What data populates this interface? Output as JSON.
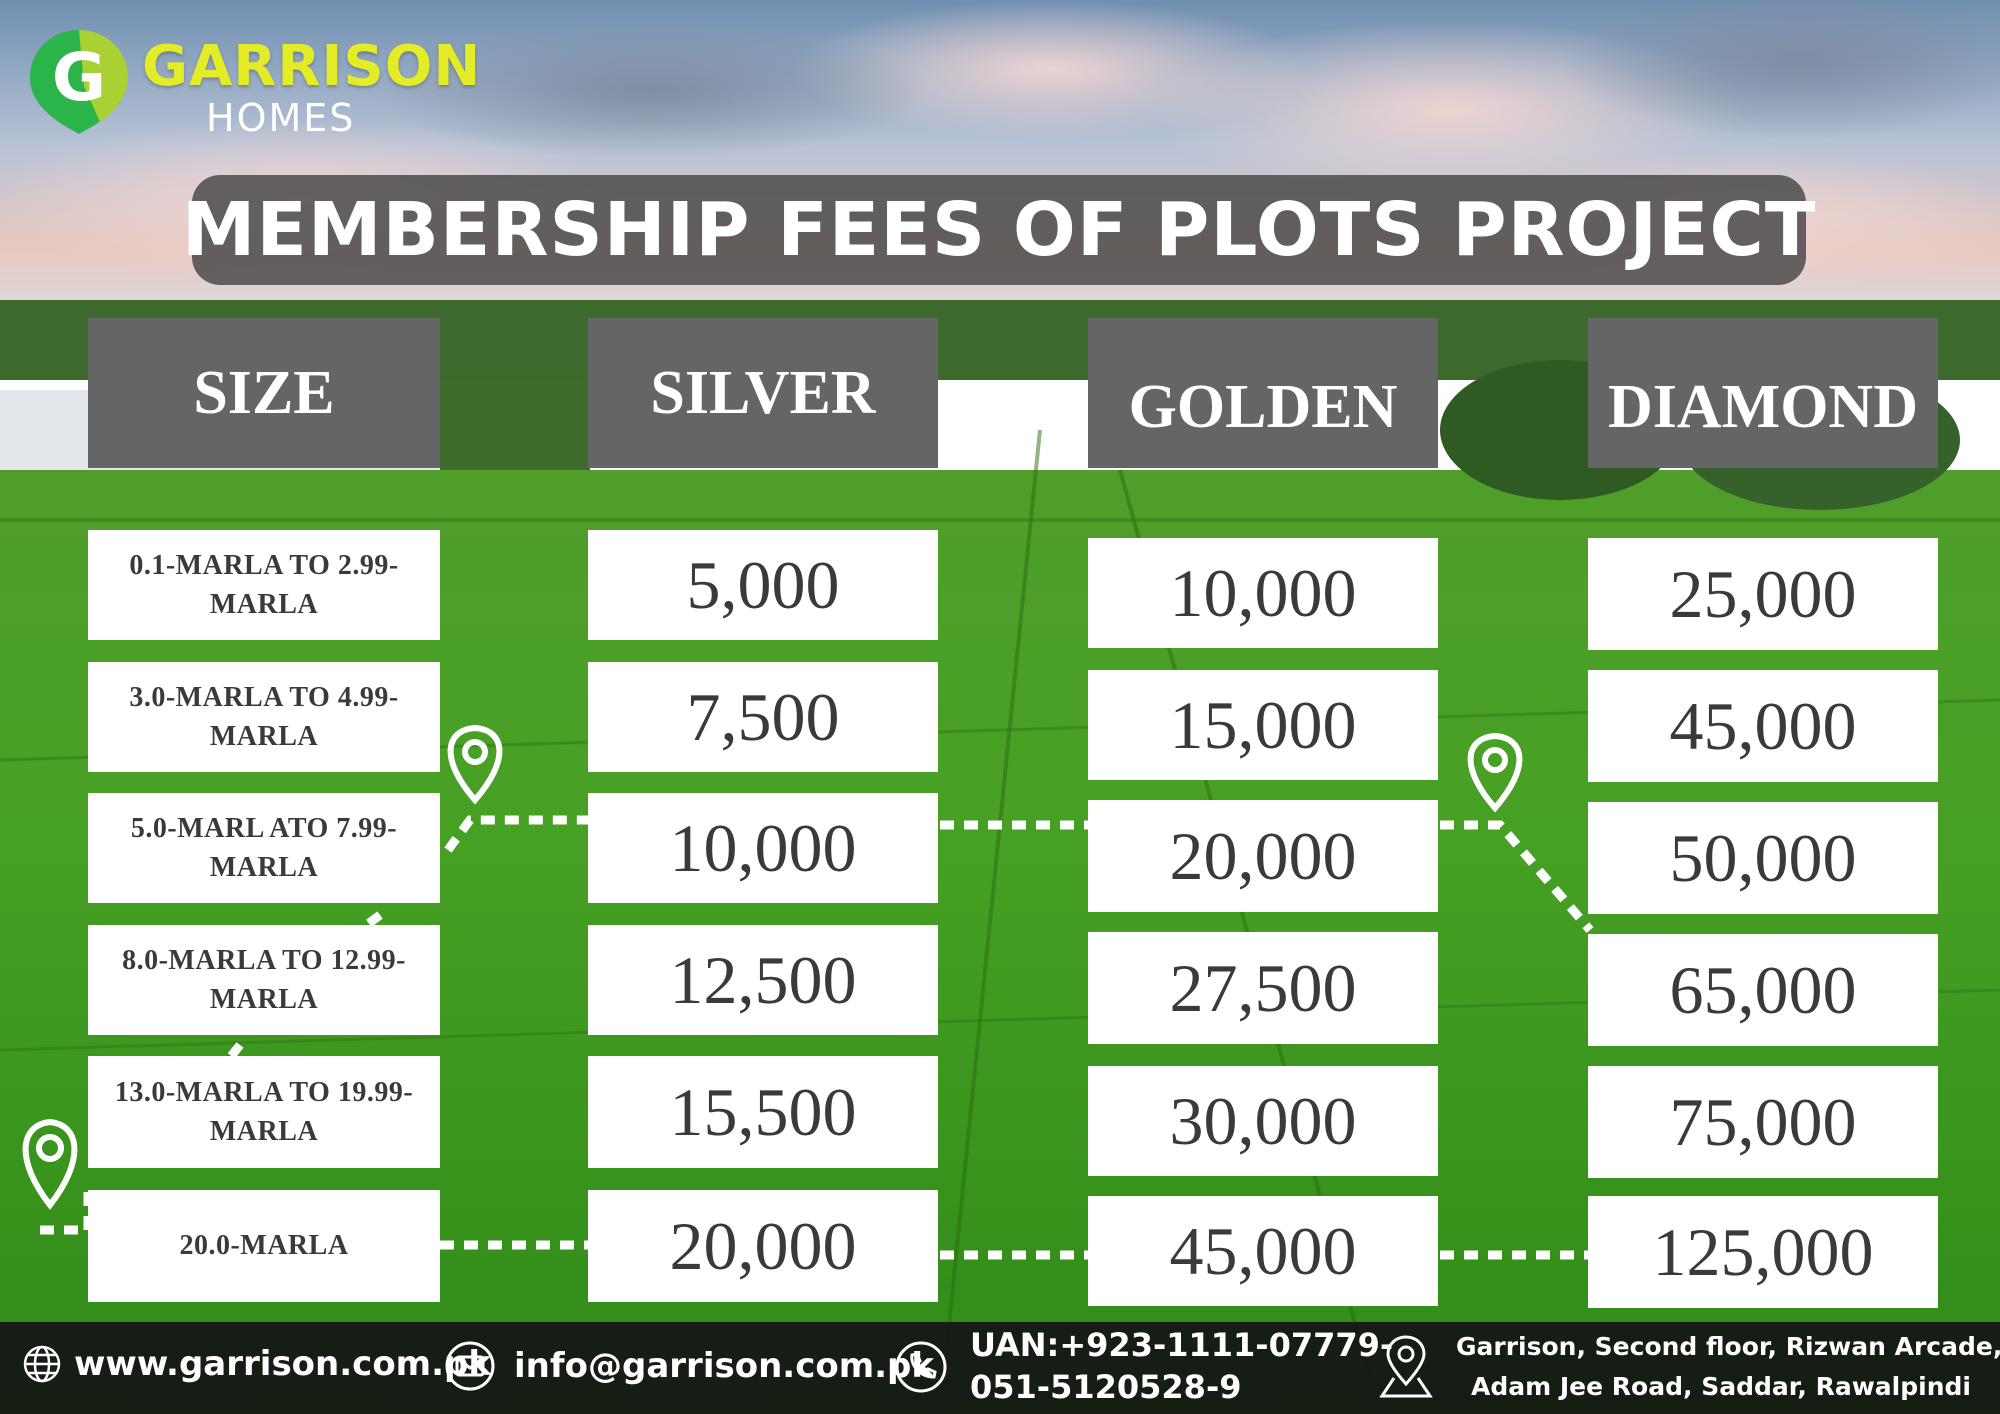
{
  "brand": {
    "name": "GARRISON",
    "sub": "HOMES",
    "mark_letter": "G",
    "colors": {
      "name": "#e3ec27",
      "mark_green": "#2bb44a",
      "mark_lime": "#b8d432"
    }
  },
  "title": "MEMBERSHIP FEES OF PLOTS PROJECT",
  "table": {
    "headers": [
      "SIZE",
      "SILVER",
      "GOLDEN",
      "DIAMOND"
    ],
    "sizes": [
      [
        "0.1-MARLA TO 2.99-",
        "MARLA"
      ],
      [
        "3.0-MARLA TO 4.99-",
        "MARLA"
      ],
      [
        "5.0-MARL ATO 7.99-",
        "MARLA"
      ],
      [
        "8.0-MARLA TO 12.99-",
        "MARLA"
      ],
      [
        "13.0-MARLA TO 19.99-",
        "MARLA"
      ],
      [
        "20.0-MARLA"
      ]
    ],
    "silver": [
      "5,000",
      "7,500",
      "10,000",
      "12,500",
      "15,500",
      "20,000"
    ],
    "golden": [
      "10,000",
      "15,000",
      "20,000",
      "27,500",
      "30,000",
      "45,000"
    ],
    "diamond": [
      "25,000",
      "45,000",
      "50,000",
      "65,000",
      "75,000",
      "125,000"
    ]
  },
  "footer": {
    "website": "www.garrison.com.pk",
    "email": "info@garrison.com.pk",
    "phone_line1": "UAN:+923-1111-07779-",
    "phone_line2": "051-5120528-9",
    "address_line1": "Garrison, Second floor, Rizwan Arcade,",
    "address_line2": "Adam Jee Road, Saddar, Rawalpindi",
    "icons": [
      "globe-icon",
      "envelope-icon",
      "phone-icon",
      "location-pin-icon"
    ]
  }
}
